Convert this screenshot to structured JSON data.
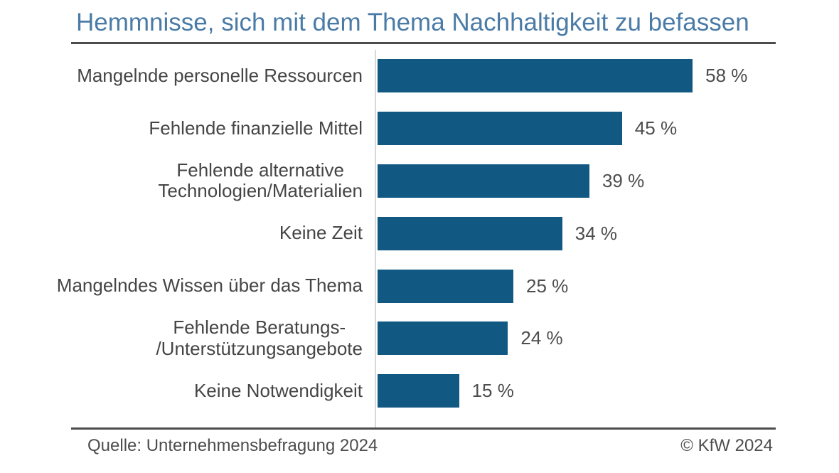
{
  "title": "Hemmnisse, sich mit dem Thema Nachhaltigkeit zu befassen",
  "footer": {
    "source": "Quelle: Unternehmensbefragung 2024",
    "copyright": "© KfW 2024"
  },
  "colors": {
    "bar": "#115883",
    "title": "#4a7ba6",
    "rule": "#4c4c4c",
    "axis_line": "#d9d9d9",
    "label": "#454545",
    "value": "#4d4d4d",
    "footer": "#4d4d4d",
    "background": "#ffffff"
  },
  "chart_data": {
    "type": "bar",
    "orientation": "horizontal",
    "title": "Hemmnisse, sich mit dem Thema Nachhaltigkeit zu befassen",
    "categories": [
      "Mangelnde personelle Ressourcen",
      "Fehlende finanzielle Mittel",
      "Fehlende alternative\nTechnologien/Materialien",
      "Keine Zeit",
      "Mangelndes Wissen über das Thema",
      "Fehlende Beratungs-\n/Unterstützungsangebote",
      "Keine Notwendigkeit"
    ],
    "values": [
      58,
      45,
      39,
      34,
      25,
      24,
      15
    ],
    "unit": "%",
    "value_labels": [
      "58 %",
      "45 %",
      "39 %",
      "34 %",
      "25 %",
      "24 %",
      "15 %"
    ],
    "xlabel": "",
    "ylabel": "",
    "xlim": [
      0,
      60
    ],
    "grid": false,
    "legend": false,
    "bars_descending": true
  }
}
